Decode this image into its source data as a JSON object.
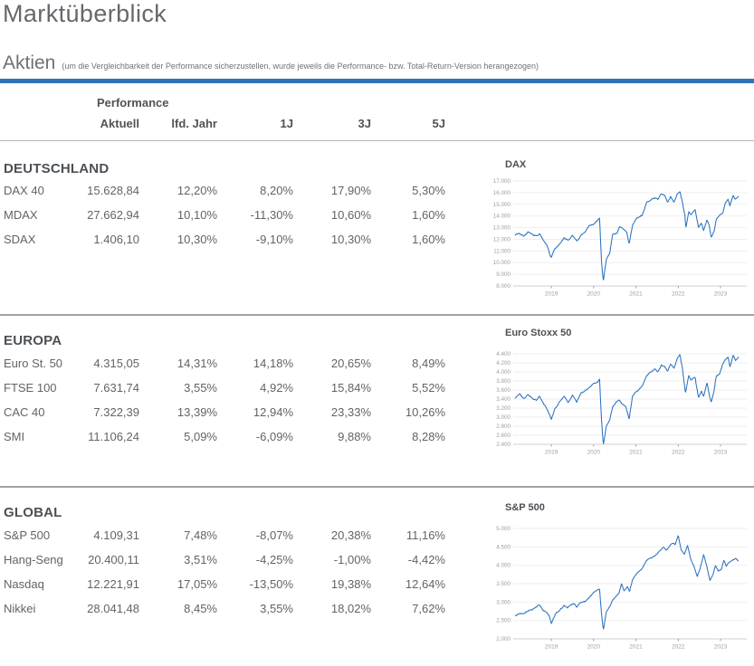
{
  "page": {
    "title": "Marktüberblick",
    "section_label": "Aktien",
    "section_note": "(um die Vergleichbarkeit der Performance sicherzustellen, wurde jeweils die Performance- bzw. Total-Return-Version herangezogen)"
  },
  "colors": {
    "accent_rule": "#2e74b8",
    "chart_line": "#2b72bd",
    "grid_line": "#e9e9e9",
    "axis_line": "#cfcfcf",
    "tick_text": "#9a9ea3"
  },
  "table": {
    "group_header": "Performance",
    "columns": [
      "Aktuell",
      "lfd. Jahr",
      "1J",
      "3J",
      "5J"
    ],
    "sections": [
      {
        "name": "DEUTSCHLAND",
        "rows": [
          {
            "label": "DAX 40",
            "values": [
              "15.628,84",
              "12,20%",
              "8,20%",
              "17,90%",
              "5,30%"
            ]
          },
          {
            "label": "MDAX",
            "values": [
              "27.662,94",
              "10,10%",
              "-11,30%",
              "10,60%",
              "1,60%"
            ]
          },
          {
            "label": "SDAX",
            "values": [
              "1.406,10",
              "10,30%",
              "-9,10%",
              "10,30%",
              "1,60%"
            ]
          }
        ]
      },
      {
        "name": "EUROPA",
        "rows": [
          {
            "label": "Euro St. 50",
            "values": [
              "4.315,05",
              "14,31%",
              "14,18%",
              "20,65%",
              "8,49%"
            ]
          },
          {
            "label": "FTSE 100",
            "values": [
              "7.631,74",
              "3,55%",
              "4,92%",
              "15,84%",
              "5,52%"
            ]
          },
          {
            "label": "CAC 40",
            "values": [
              "7.322,39",
              "13,39%",
              "12,94%",
              "23,33%",
              "10,26%"
            ]
          },
          {
            "label": "SMI",
            "values": [
              "11.106,24",
              "5,09%",
              "-6,09%",
              "9,88%",
              "8,28%"
            ]
          }
        ]
      },
      {
        "name": "GLOBAL",
        "rows": [
          {
            "label": "S&P 500",
            "values": [
              "4.109,31",
              "7,48%",
              "-8,07%",
              "20,38%",
              "11,16%"
            ]
          },
          {
            "label": "Hang-Seng",
            "values": [
              "20.400,11",
              "3,51%",
              "-4,25%",
              "-1,00%",
              "-4,42%"
            ]
          },
          {
            "label": "Nasdaq",
            "values": [
              "12.221,91",
              "17,05%",
              "-13,50%",
              "19,38%",
              "12,64%"
            ]
          },
          {
            "label": "Nikkei",
            "values": [
              "28.041,48",
              "8,45%",
              "3,55%",
              "18,02%",
              "7,62%"
            ]
          }
        ]
      }
    ]
  },
  "chart_data": [
    {
      "type": "line",
      "title": "DAX",
      "ylim": [
        8000,
        17000
      ],
      "yticks": [
        "17.000",
        "16.000",
        "15.000",
        "14.000",
        "13.000",
        "12.000",
        "11.000",
        "10.000",
        "9.000",
        "8.000"
      ],
      "xlim": [
        2018.1,
        2023.62
      ],
      "xticks": [
        "2019",
        "2020",
        "2021",
        "2022",
        "2023"
      ],
      "grid": true,
      "legend": "none",
      "noise": 95,
      "seed": 7,
      "series": [
        [
          2018.15,
          12400
        ],
        [
          2018.25,
          12550
        ],
        [
          2018.35,
          12300
        ],
        [
          2018.45,
          12650
        ],
        [
          2018.55,
          12350
        ],
        [
          2018.65,
          12250
        ],
        [
          2018.72,
          12450
        ],
        [
          2018.8,
          12050
        ],
        [
          2018.9,
          11450
        ],
        [
          2018.98,
          10550
        ],
        [
          2019.0,
          10450
        ],
        [
          2019.08,
          11150
        ],
        [
          2019.18,
          11500
        ],
        [
          2019.3,
          12050
        ],
        [
          2019.4,
          11900
        ],
        [
          2019.5,
          12350
        ],
        [
          2019.6,
          11850
        ],
        [
          2019.7,
          12300
        ],
        [
          2019.8,
          12650
        ],
        [
          2019.9,
          13150
        ],
        [
          2020.0,
          13300
        ],
        [
          2020.1,
          13600
        ],
        [
          2020.14,
          13750
        ],
        [
          2020.19,
          9900
        ],
        [
          2020.23,
          8450
        ],
        [
          2020.3,
          10300
        ],
        [
          2020.38,
          10850
        ],
        [
          2020.45,
          12400
        ],
        [
          2020.55,
          12550
        ],
        [
          2020.62,
          13050
        ],
        [
          2020.7,
          12850
        ],
        [
          2020.78,
          12550
        ],
        [
          2020.84,
          11650
        ],
        [
          2020.92,
          13250
        ],
        [
          2021.0,
          13750
        ],
        [
          2021.08,
          13900
        ],
        [
          2021.15,
          14050
        ],
        [
          2021.25,
          15150
        ],
        [
          2021.35,
          15350
        ],
        [
          2021.45,
          15550
        ],
        [
          2021.52,
          15450
        ],
        [
          2021.6,
          15900
        ],
        [
          2021.68,
          15800
        ],
        [
          2021.75,
          15150
        ],
        [
          2021.82,
          15650
        ],
        [
          2021.9,
          15200
        ],
        [
          2021.98,
          15950
        ],
        [
          2022.04,
          16150
        ],
        [
          2022.1,
          15200
        ],
        [
          2022.16,
          14000
        ],
        [
          2022.18,
          12950
        ],
        [
          2022.25,
          14350
        ],
        [
          2022.3,
          14050
        ],
        [
          2022.4,
          14550
        ],
        [
          2022.48,
          13000
        ],
        [
          2022.55,
          13350
        ],
        [
          2022.6,
          12750
        ],
        [
          2022.68,
          13650
        ],
        [
          2022.73,
          13250
        ],
        [
          2022.78,
          12150
        ],
        [
          2022.85,
          12650
        ],
        [
          2022.9,
          13650
        ],
        [
          2022.98,
          14050
        ],
        [
          2023.05,
          14300
        ],
        [
          2023.12,
          15250
        ],
        [
          2023.18,
          15450
        ],
        [
          2023.22,
          14850
        ],
        [
          2023.3,
          15750
        ],
        [
          2023.35,
          15350
        ],
        [
          2023.42,
          15650
        ]
      ]
    },
    {
      "type": "line",
      "title": "Euro Stoxx 50",
      "ylim": [
        2400,
        4400
      ],
      "yticks": [
        "4.400",
        "4.200",
        "4.000",
        "3.800",
        "3.600",
        "3.400",
        "3.200",
        "3.000",
        "2.800",
        "2.600",
        "2.400"
      ],
      "xlim": [
        2018.1,
        2023.62
      ],
      "xticks": [
        "2019",
        "2020",
        "2021",
        "2022",
        "2023"
      ],
      "grid": true,
      "legend": "none",
      "noise": 24,
      "seed": 11,
      "series": [
        [
          2018.15,
          3420
        ],
        [
          2018.25,
          3520
        ],
        [
          2018.35,
          3400
        ],
        [
          2018.45,
          3500
        ],
        [
          2018.55,
          3430
        ],
        [
          2018.65,
          3370
        ],
        [
          2018.72,
          3460
        ],
        [
          2018.8,
          3320
        ],
        [
          2018.9,
          3180
        ],
        [
          2019.0,
          2960
        ],
        [
          2019.08,
          3180
        ],
        [
          2019.18,
          3310
        ],
        [
          2019.3,
          3480
        ],
        [
          2019.4,
          3330
        ],
        [
          2019.5,
          3480
        ],
        [
          2019.6,
          3340
        ],
        [
          2019.7,
          3540
        ],
        [
          2019.8,
          3590
        ],
        [
          2019.9,
          3680
        ],
        [
          2020.0,
          3750
        ],
        [
          2020.1,
          3790
        ],
        [
          2020.14,
          3860
        ],
        [
          2020.19,
          2900
        ],
        [
          2020.23,
          2410
        ],
        [
          2020.3,
          2820
        ],
        [
          2020.38,
          2950
        ],
        [
          2020.45,
          3230
        ],
        [
          2020.52,
          3320
        ],
        [
          2020.6,
          3380
        ],
        [
          2020.68,
          3300
        ],
        [
          2020.76,
          3250
        ],
        [
          2020.84,
          2970
        ],
        [
          2020.92,
          3480
        ],
        [
          2021.0,
          3560
        ],
        [
          2021.08,
          3620
        ],
        [
          2021.15,
          3700
        ],
        [
          2021.25,
          3920
        ],
        [
          2021.35,
          4000
        ],
        [
          2021.45,
          4060
        ],
        [
          2021.52,
          3990
        ],
        [
          2021.6,
          4150
        ],
        [
          2021.68,
          4110
        ],
        [
          2021.75,
          4000
        ],
        [
          2021.82,
          4170
        ],
        [
          2021.9,
          4090
        ],
        [
          2021.98,
          4300
        ],
        [
          2022.04,
          4390
        ],
        [
          2022.1,
          4080
        ],
        [
          2022.17,
          3520
        ],
        [
          2022.25,
          3910
        ],
        [
          2022.3,
          3800
        ],
        [
          2022.4,
          3870
        ],
        [
          2022.48,
          3420
        ],
        [
          2022.55,
          3570
        ],
        [
          2022.6,
          3450
        ],
        [
          2022.68,
          3760
        ],
        [
          2022.75,
          3430
        ],
        [
          2022.78,
          3320
        ],
        [
          2022.85,
          3600
        ],
        [
          2022.9,
          3920
        ],
        [
          2022.98,
          3960
        ],
        [
          2023.05,
          4180
        ],
        [
          2023.12,
          4280
        ],
        [
          2023.18,
          4320
        ],
        [
          2023.22,
          4120
        ],
        [
          2023.3,
          4380
        ],
        [
          2023.35,
          4250
        ],
        [
          2023.42,
          4330
        ]
      ]
    },
    {
      "type": "line",
      "title": "S&P 500",
      "ylim": [
        2000,
        5000
      ],
      "yticks": [
        "5.000",
        "4.500",
        "4.000",
        "3.500",
        "3.000",
        "2.500",
        "2.000"
      ],
      "xlim": [
        2018.1,
        2023.62
      ],
      "xticks": [
        "2019",
        "2020",
        "2021",
        "2022",
        "2023"
      ],
      "grid": true,
      "legend": "none",
      "noise": 26,
      "seed": 13,
      "series": [
        [
          2018.15,
          2640
        ],
        [
          2018.25,
          2700
        ],
        [
          2018.35,
          2720
        ],
        [
          2018.45,
          2780
        ],
        [
          2018.55,
          2800
        ],
        [
          2018.65,
          2870
        ],
        [
          2018.72,
          2920
        ],
        [
          2018.8,
          2780
        ],
        [
          2018.88,
          2720
        ],
        [
          2018.95,
          2620
        ],
        [
          2019.0,
          2400
        ],
        [
          2019.05,
          2550
        ],
        [
          2019.12,
          2700
        ],
        [
          2019.2,
          2790
        ],
        [
          2019.3,
          2900
        ],
        [
          2019.38,
          2830
        ],
        [
          2019.45,
          2920
        ],
        [
          2019.55,
          2960
        ],
        [
          2019.6,
          2870
        ],
        [
          2019.7,
          2990
        ],
        [
          2019.8,
          3010
        ],
        [
          2019.9,
          3130
        ],
        [
          2020.0,
          3250
        ],
        [
          2020.1,
          3340
        ],
        [
          2020.14,
          3380
        ],
        [
          2020.19,
          2650
        ],
        [
          2020.23,
          2250
        ],
        [
          2020.3,
          2720
        ],
        [
          2020.38,
          2870
        ],
        [
          2020.45,
          3050
        ],
        [
          2020.52,
          3150
        ],
        [
          2020.6,
          3230
        ],
        [
          2020.66,
          3480
        ],
        [
          2020.72,
          3300
        ],
        [
          2020.8,
          3420
        ],
        [
          2020.85,
          3300
        ],
        [
          2020.92,
          3620
        ],
        [
          2021.0,
          3750
        ],
        [
          2021.08,
          3830
        ],
        [
          2021.15,
          3900
        ],
        [
          2021.25,
          4120
        ],
        [
          2021.35,
          4180
        ],
        [
          2021.45,
          4250
        ],
        [
          2021.55,
          4380
        ],
        [
          2021.65,
          4500
        ],
        [
          2021.72,
          4400
        ],
        [
          2021.8,
          4520
        ],
        [
          2021.87,
          4600
        ],
        [
          2021.93,
          4550
        ],
        [
          2022.0,
          4790
        ],
        [
          2022.07,
          4400
        ],
        [
          2022.15,
          4300
        ],
        [
          2022.22,
          4550
        ],
        [
          2022.3,
          4150
        ],
        [
          2022.38,
          3950
        ],
        [
          2022.45,
          3700
        ],
        [
          2022.52,
          3900
        ],
        [
          2022.6,
          4280
        ],
        [
          2022.68,
          3950
        ],
        [
          2022.75,
          3600
        ],
        [
          2022.82,
          3750
        ],
        [
          2022.88,
          4000
        ],
        [
          2022.95,
          3850
        ],
        [
          2023.02,
          3900
        ],
        [
          2023.08,
          4140
        ],
        [
          2023.14,
          3980
        ],
        [
          2023.2,
          4080
        ],
        [
          2023.28,
          4140
        ],
        [
          2023.35,
          4180
        ],
        [
          2023.42,
          4130
        ]
      ]
    }
  ]
}
